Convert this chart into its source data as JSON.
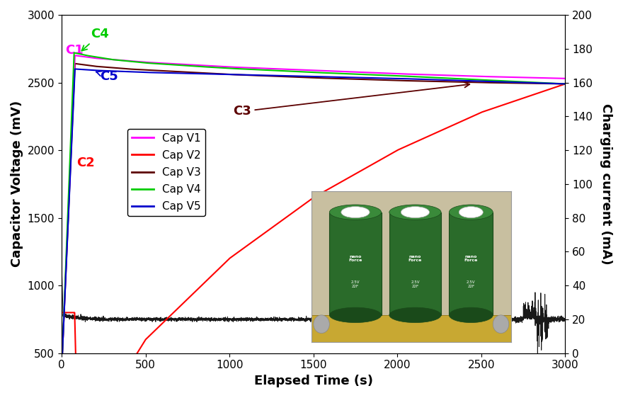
{
  "xlabel": "Elapsed Time (s)",
  "ylabel_left": "Capacitor Voltage (mV)",
  "ylabel_right": "Charging current (mA)",
  "xlim": [
    0,
    3000
  ],
  "ylim_left": [
    500,
    3000
  ],
  "ylim_right": [
    0,
    200
  ],
  "legend_entries": [
    "Cap V1",
    "Cap V2",
    "Cap V3",
    "Cap V4",
    "Cap V5"
  ],
  "colors": {
    "C1": "#FF00FF",
    "C2": "#FF0000",
    "C3": "#5C0000",
    "C4": "#00CC00",
    "C5": "#0000CC",
    "current": "#000000"
  },
  "background_color": "#FFFFFF",
  "xticks": [
    0,
    500,
    1000,
    1500,
    2000,
    2500,
    3000
  ],
  "yticks_left": [
    500,
    1000,
    1500,
    2000,
    2500,
    3000
  ],
  "yticks_right": [
    0,
    20,
    40,
    60,
    80,
    100,
    120,
    140,
    160,
    180,
    200
  ]
}
